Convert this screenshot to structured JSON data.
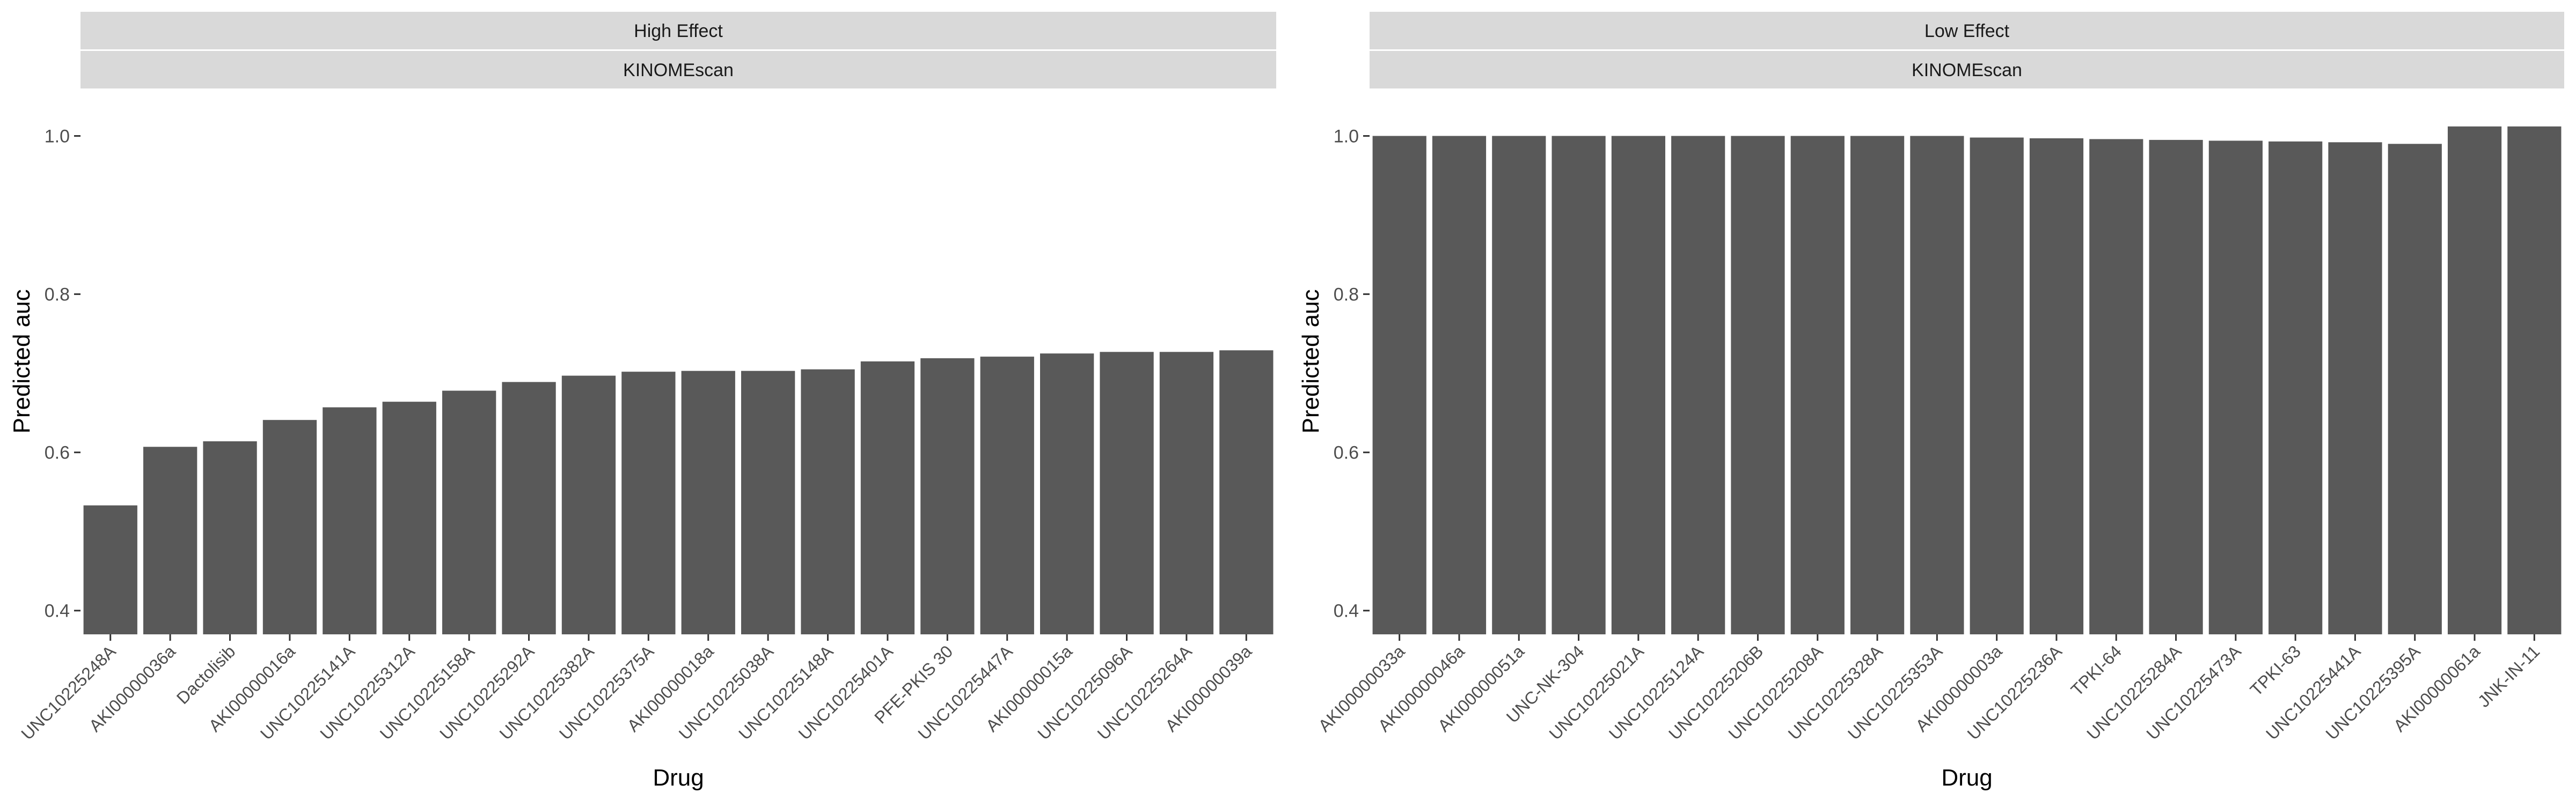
{
  "style": {
    "bar_color": "#595959",
    "strip_bg": "#d9d9d9",
    "tick_color": "#333333",
    "text_color": "#000000"
  },
  "chart_data": [
    {
      "type": "bar",
      "strips": [
        "High Effect",
        "KINOMEscan"
      ],
      "xlabel": "Drug",
      "ylabel": "Predicted auc",
      "ylim": [
        0.37,
        1.06
      ],
      "yticks": [
        0.4,
        0.6,
        0.8,
        1.0
      ],
      "ytick_labels": [
        "0.4",
        "0.6",
        "0.8",
        "1.0"
      ],
      "grid": false,
      "categories": [
        "UNC10225248A",
        "AKI00000036a",
        "Dactolisib",
        "AKI00000016a",
        "UNC10225141A",
        "UNC10225312A",
        "UNC10225158A",
        "UNC10225292A",
        "UNC10225382A",
        "UNC10225375A",
        "AKI00000018a",
        "UNC10225038A",
        "UNC10225148A",
        "UNC10225401A",
        "PFE-PKIS 30",
        "UNC10225447A",
        "AKI00000015a",
        "UNC10225096A",
        "UNC10225264A",
        "AKI00000039a"
      ],
      "values": [
        0.533,
        0.607,
        0.614,
        0.641,
        0.657,
        0.664,
        0.678,
        0.689,
        0.697,
        0.702,
        0.703,
        0.703,
        0.705,
        0.715,
        0.719,
        0.721,
        0.725,
        0.727,
        0.727,
        0.729
      ]
    },
    {
      "type": "bar",
      "strips": [
        "Low Effect",
        "KINOMEscan"
      ],
      "xlabel": "Drug",
      "ylabel": "Predicted auc",
      "ylim": [
        0.37,
        1.06
      ],
      "yticks": [
        0.4,
        0.6,
        0.8,
        1.0
      ],
      "ytick_labels": [
        "0.4",
        "0.6",
        "0.8",
        "1.0"
      ],
      "grid": false,
      "categories": [
        "AKI00000033a",
        "AKI00000046a",
        "AKI00000051a",
        "UNC-NK-304",
        "UNC10225021A",
        "UNC10225124A",
        "UNC10225206B",
        "UNC10225208A",
        "UNC10225328A",
        "UNC10225353A",
        "AKI00000003a",
        "UNC10225236A",
        "TPKI-64",
        "UNC10225284A",
        "UNC10225473A",
        "TPKI-63",
        "UNC10225441A",
        "UNC10225395A",
        "AKI00000061a",
        "JNK-IN-11"
      ],
      "values": [
        1.0,
        1.0,
        1.0,
        1.0,
        1.0,
        1.0,
        1.0,
        1.0,
        1.0,
        1.0,
        0.998,
        0.997,
        0.996,
        0.995,
        0.994,
        0.993,
        0.992,
        0.99,
        1.012,
        1.012
      ]
    }
  ]
}
